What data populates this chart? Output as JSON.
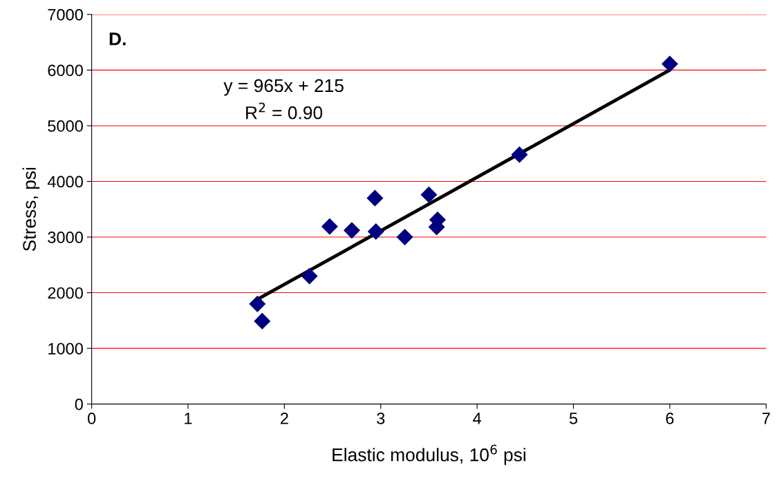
{
  "chart_data": {
    "type": "scatter",
    "xlabel": "Elastic modulus, 10$^{6}$ psi",
    "ylabel": "Stress, psi",
    "series": [
      {
        "color": "#000080",
        "marker": "diamond",
        "x": [
          1.72,
          1.77,
          2.26,
          2.47,
          2.7,
          2.94,
          2.95,
          3.25,
          3.5,
          3.59,
          3.58,
          4.44,
          6.0
        ],
        "values": [
          1800,
          1490,
          2300,
          3190,
          3120,
          3700,
          3100,
          3000,
          3760,
          3310,
          3180,
          4480,
          6110
        ]
      },
      {
        "type": "line",
        "color": "#000000",
        "marker": "none",
        "line_style": "solid",
        "x": [
          1.72,
          6.0
        ],
        "values": [
          1880,
          6000
        ]
      }
    ],
    "xlim": [
      0,
      7
    ],
    "xticks": [
      0,
      1,
      2,
      3,
      4,
      5,
      6,
      7
    ],
    "ylim": [
      0,
      7000
    ],
    "yticks": [
      0,
      1000,
      2000,
      3000,
      4000,
      5000,
      6000,
      7000
    ],
    "grid": "y",
    "legend": false,
    "annotations": [
      "D.",
      "y = 965x + 215",
      "R$^{2}$ = 0.90"
    ]
  }
}
